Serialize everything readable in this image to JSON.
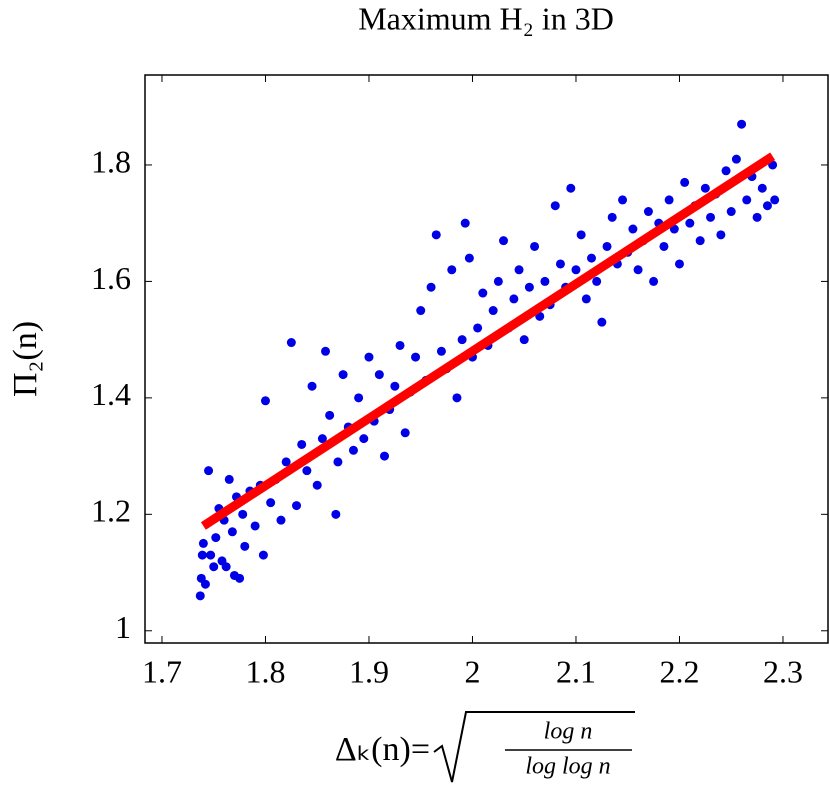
{
  "chart_data": {
    "type": "scatter",
    "title": "Maximum H₂ in 3D",
    "y_label": "Π₂(n)",
    "x_label": {
      "lhs": "Δₖ(n)=",
      "numerator": "log n",
      "denominator": "log log n"
    },
    "xlim": [
      1.6836,
      2.3435
    ],
    "ylim": [
      0.979,
      1.9545
    ],
    "xticks": [
      1.7,
      1.8,
      1.9,
      2,
      2.1,
      2.2,
      2.3
    ],
    "yticks": [
      1,
      1.2,
      1.4,
      1.6,
      1.8
    ],
    "points": {
      "color": "#0000e6",
      "x": [
        1.737,
        1.738,
        1.739,
        1.74,
        1.742,
        1.745,
        1.747,
        1.75,
        1.752,
        1.755,
        1.758,
        1.76,
        1.762,
        1.765,
        1.768,
        1.77,
        1.772,
        1.775,
        1.778,
        1.78,
        1.785,
        1.79,
        1.795,
        1.798,
        1.8,
        1.805,
        1.81,
        1.815,
        1.82,
        1.825,
        1.83,
        1.835,
        1.84,
        1.845,
        1.85,
        1.855,
        1.858,
        1.862,
        1.868,
        1.87,
        1.875,
        1.88,
        1.885,
        1.89,
        1.895,
        1.9,
        1.905,
        1.91,
        1.915,
        1.92,
        1.925,
        1.93,
        1.935,
        1.94,
        1.945,
        1.95,
        1.955,
        1.96,
        1.965,
        1.97,
        1.975,
        1.98,
        1.985,
        1.99,
        1.993,
        1.997,
        2,
        2.005,
        2.01,
        2.015,
        2.02,
        2.025,
        2.03,
        2.035,
        2.04,
        2.045,
        2.05,
        2.055,
        2.06,
        2.065,
        2.07,
        2.075,
        2.08,
        2.085,
        2.09,
        2.095,
        2.1,
        2.105,
        2.11,
        2.115,
        2.12,
        2.125,
        2.13,
        2.135,
        2.14,
        2.145,
        2.15,
        2.155,
        2.16,
        2.165,
        2.17,
        2.175,
        2.18,
        2.185,
        2.19,
        2.195,
        2.2,
        2.205,
        2.21,
        2.215,
        2.22,
        2.225,
        2.23,
        2.235,
        2.24,
        2.245,
        2.25,
        2.255,
        2.26,
        2.265,
        2.27,
        2.275,
        2.28,
        2.285,
        2.29,
        2.292
      ],
      "y": [
        1.06,
        1.09,
        1.13,
        1.15,
        1.08,
        1.275,
        1.13,
        1.11,
        1.16,
        1.21,
        1.12,
        1.19,
        1.11,
        1.26,
        1.17,
        1.095,
        1.23,
        1.09,
        1.2,
        1.145,
        1.24,
        1.18,
        1.25,
        1.13,
        1.395,
        1.22,
        1.26,
        1.19,
        1.29,
        1.495,
        1.215,
        1.32,
        1.275,
        1.42,
        1.25,
        1.33,
        1.48,
        1.37,
        1.2,
        1.29,
        1.44,
        1.35,
        1.31,
        1.4,
        1.33,
        1.47,
        1.36,
        1.44,
        1.3,
        1.38,
        1.42,
        1.49,
        1.34,
        1.41,
        1.47,
        1.55,
        1.43,
        1.59,
        1.68,
        1.48,
        1.45,
        1.62,
        1.4,
        1.5,
        1.7,
        1.64,
        1.47,
        1.52,
        1.58,
        1.49,
        1.55,
        1.6,
        1.67,
        1.52,
        1.57,
        1.62,
        1.5,
        1.59,
        1.66,
        1.54,
        1.6,
        1.56,
        1.73,
        1.63,
        1.59,
        1.76,
        1.62,
        1.68,
        1.57,
        1.64,
        1.6,
        1.53,
        1.66,
        1.71,
        1.63,
        1.74,
        1.65,
        1.69,
        1.62,
        1.67,
        1.72,
        1.6,
        1.7,
        1.66,
        1.74,
        1.69,
        1.63,
        1.77,
        1.7,
        1.73,
        1.67,
        1.76,
        1.71,
        1.75,
        1.68,
        1.79,
        1.72,
        1.81,
        1.87,
        1.74,
        1.78,
        1.71,
        1.76,
        1.73,
        1.8,
        1.74
      ]
    },
    "fit_line": {
      "color": "#ff0000",
      "x": [
        1.74,
        2.29
      ],
      "y": [
        1.18,
        1.815
      ]
    }
  }
}
